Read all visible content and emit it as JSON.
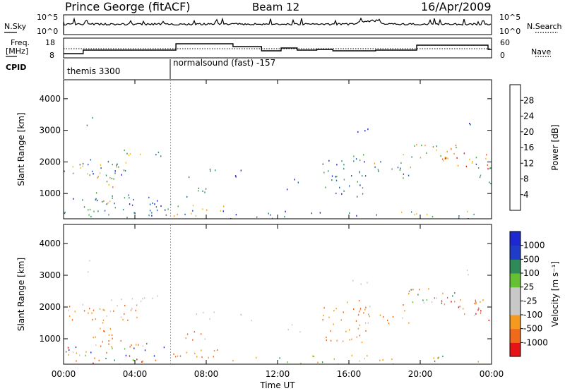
{
  "header": {
    "site": "Prince George (fitACF)",
    "beam": "Beam 12",
    "date": "16/Apr/2009"
  },
  "labels": {
    "nsky": "N.Sky",
    "nsearch": "N.Search",
    "freq_line1": "Freq.",
    "freq_line2": "[MHz]",
    "nave": "Nave",
    "cpid": "CPID",
    "nsky_top": "10^5",
    "nsky_bottom": "10^0",
    "nsearch_top": "10^5",
    "nsearch_bottom": "10^0",
    "freq_top": "18",
    "freq_bottom": "8",
    "nave_top": "60",
    "nave_bottom": "0",
    "cpid_1": "themis 3300",
    "cpid_2": "normalsound (fast) -157"
  },
  "colors": {
    "power": [
      "#1e28d2",
      "#2a5ab4",
      "#2e8b78",
      "#49a94a",
      "#f0c020",
      "#f59a1e",
      "#f06a1c",
      "#e61414"
    ],
    "velocity": [
      "#e61414",
      "#f06a1c",
      "#f59a1e",
      "#c8c8c8",
      "#c8c8c8",
      "#66c033",
      "#2e8b57",
      "#1e28d2"
    ]
  },
  "chart_data": [
    {
      "type": "heatmap",
      "name": "power",
      "ylabel": "Slant Range [km]",
      "yticks": [
        1000,
        2000,
        3000,
        4000
      ],
      "ylim": [
        200,
        4600
      ],
      "xlim": [
        0,
        24
      ],
      "colorbar": {
        "label": "Power [dB]",
        "ticks": [
          "4",
          "8",
          "12",
          "16",
          "20",
          "24",
          "28"
        ],
        "range": [
          0,
          32
        ]
      }
    },
    {
      "type": "heatmap",
      "name": "velocity",
      "ylabel": "Slant Range [km]",
      "xlabel": "Time UT",
      "yticks": [
        1000,
        2000,
        3000,
        4000
      ],
      "ylim": [
        200,
        4600
      ],
      "xlim": [
        0,
        24
      ],
      "xticks": [
        "00:00",
        "04:00",
        "08:00",
        "12:00",
        "16:00",
        "20:00",
        "00:00"
      ],
      "xtick_values": [
        0,
        4,
        8,
        12,
        16,
        20,
        24
      ],
      "colorbar": {
        "label": "Velocity [m s-1]",
        "ticks": [
          "1000",
          "500",
          "100",
          "25",
          "-25",
          "-100",
          "-500",
          "-1000"
        ]
      }
    }
  ]
}
